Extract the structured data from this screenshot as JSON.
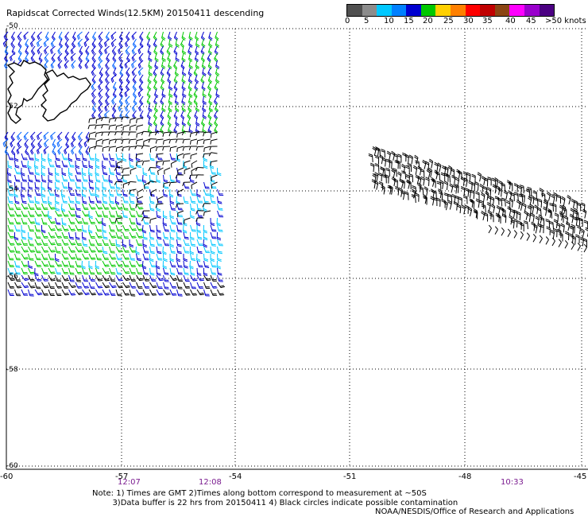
{
  "title": "Rapidscat Corrected Winds(12.5KM) 20150411 descending",
  "legend": {
    "colors": [
      "#505050",
      "#8c8c8c",
      "#00c8ff",
      "#0080ff",
      "#0000d0",
      "#00c800",
      "#ffd000",
      "#ff8000",
      "#ff0000",
      "#c00000",
      "#8b4513",
      "#ff00ff",
      "#9900cc",
      "#4b0082"
    ],
    "labels": [
      "0",
      "5",
      "10",
      "15",
      "20",
      "25",
      "30",
      "35",
      "40",
      "45",
      ">50 knots"
    ]
  },
  "axes": {
    "lat_labels": [
      "-50",
      "-52",
      "-54",
      "-56",
      "-58",
      "-60"
    ],
    "lon_labels": [
      "-60",
      "-57",
      "-54",
      "-51",
      "-48",
      "-45"
    ],
    "time_labels": [
      "12:07",
      "12:08",
      "10:33"
    ]
  },
  "notes": {
    "line1": "Note: 1) Times are GMT 2)Times along bottom correspond to measurement at ~50S",
    "line2": "3)Data buffer is 22 hrs from 20150411 4) Black circles indicate possible contamination"
  },
  "credit": "NOAA/NESDIS/Office of Research and Applications",
  "colors": {
    "barb_black": "#000000",
    "barb_cyan": "#00c8ff",
    "barb_blue": "#0000d0",
    "barb_mid_blue": "#0060ff",
    "barb_green": "#00c800",
    "time_label": "#7a1b8f"
  }
}
